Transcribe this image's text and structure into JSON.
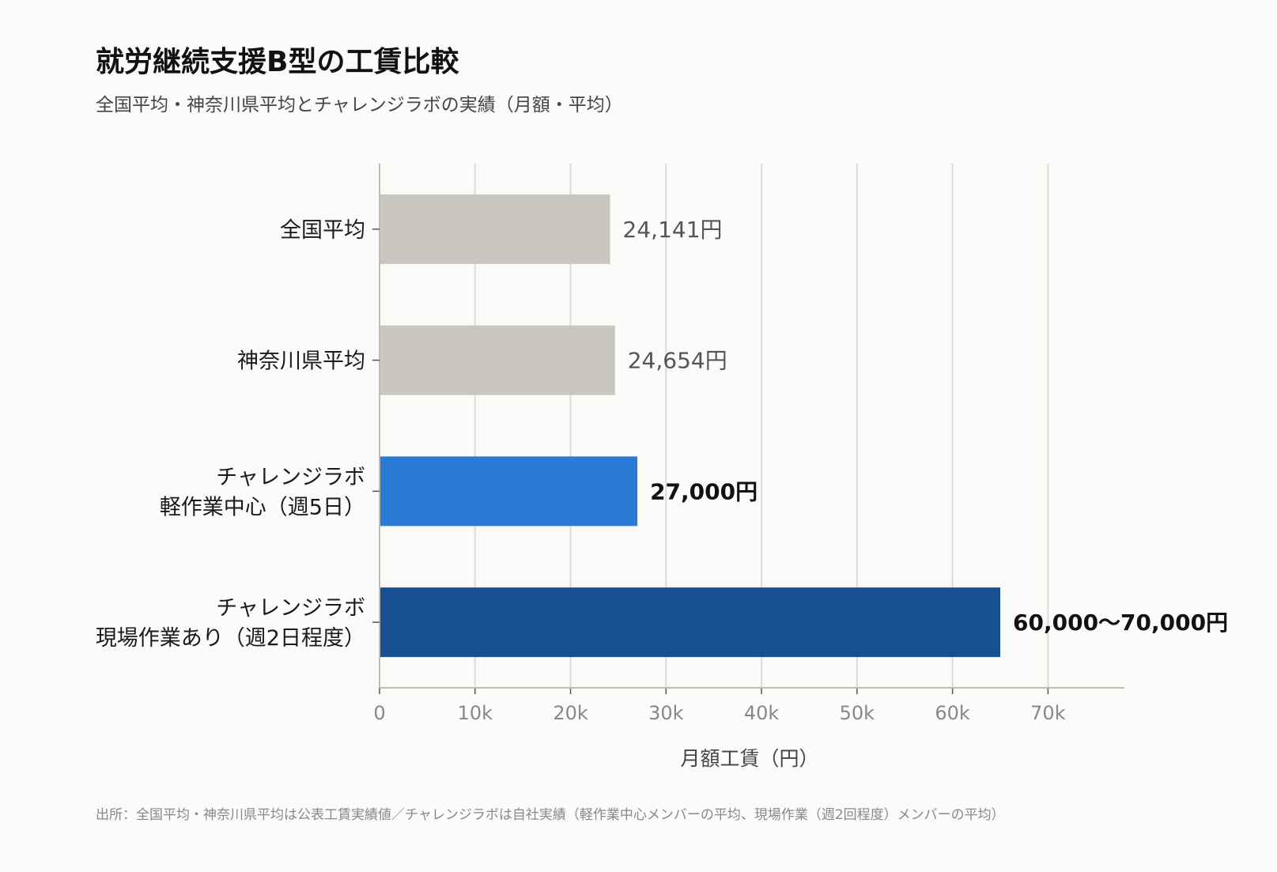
{
  "chart_data": {
    "type": "bar",
    "orientation": "horizontal",
    "title": "就労継続支援B型の工賃比較",
    "subtitle": "全国平均・神奈川県平均とチャレンジラボの実績（月額・平均）",
    "xlabel": "月額工賃（円）",
    "ylabel": "",
    "xlim": [
      0,
      78000
    ],
    "xticks": [
      0,
      10000,
      20000,
      30000,
      40000,
      50000,
      60000,
      70000
    ],
    "xtick_labels": [
      "0",
      "10k",
      "20k",
      "30k",
      "40k",
      "50k",
      "60k",
      "70k"
    ],
    "grid": "vertical",
    "categories": [
      [
        "全国平均"
      ],
      [
        "神奈川県平均"
      ],
      [
        "チャレンジラボ",
        "軽作業中心（週5日）"
      ],
      [
        "チャレンジラボ",
        "現場作業あり（週2日程度）"
      ]
    ],
    "values": [
      24141,
      24654,
      27000,
      65000
    ],
    "value_labels": [
      "24,141円",
      "24,654円",
      "27,000円",
      "60,000〜70,000円"
    ],
    "label_bold": [
      false,
      false,
      true,
      true
    ],
    "colors": [
      "#c8c6bf",
      "#c8c6bf",
      "#2a7ad6",
      "#184f93"
    ],
    "source": "出所：全国平均・神奈川県平均は公表工賃実績値／チャレンジラボは自社実績（軽作業中心メンバーの平均、現場作業（週2回程度）メンバーの平均）"
  }
}
